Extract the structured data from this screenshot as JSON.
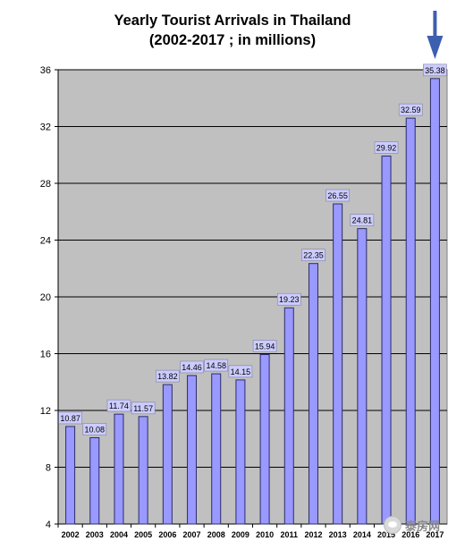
{
  "title_line1": "Yearly Tourist Arrivals in Thailand",
  "title_line2": "(2002-2017 ; in millions)",
  "colors": {
    "plot_bg": "#c0c0c0",
    "bar_fill": "#9999ff",
    "bar_stroke": "#2b2b6b",
    "label_bg": "#ccccff",
    "arrow": "#3d5fb0"
  },
  "watermark": "泰房网",
  "chart_data": {
    "type": "bar",
    "title": "Yearly Tourist Arrivals in Thailand (2002-2017 ; in millions)",
    "categories": [
      "2002",
      "2003",
      "2004",
      "2005",
      "2006",
      "2007",
      "2008",
      "2009",
      "2010",
      "2011",
      "2012",
      "2013",
      "2014",
      "2015",
      "2016",
      "2017"
    ],
    "values": [
      10.87,
      10.08,
      11.74,
      11.57,
      13.82,
      14.46,
      14.58,
      14.15,
      15.94,
      19.23,
      22.35,
      26.55,
      24.81,
      29.92,
      32.59,
      35.38
    ],
    "value_labels": [
      "10.87",
      "10.08",
      "11.74",
      "11.57",
      "13.82",
      "14.46",
      "14.58",
      "14.15",
      "15.94",
      "19.23",
      "22.35",
      "26.55",
      "24.81",
      "29.92",
      "32.59",
      "35.38"
    ],
    "ylim": [
      4,
      36
    ],
    "yticks": [
      4,
      8,
      12,
      16,
      20,
      24,
      28,
      32,
      36
    ],
    "grid": true,
    "highlight": "2017"
  }
}
